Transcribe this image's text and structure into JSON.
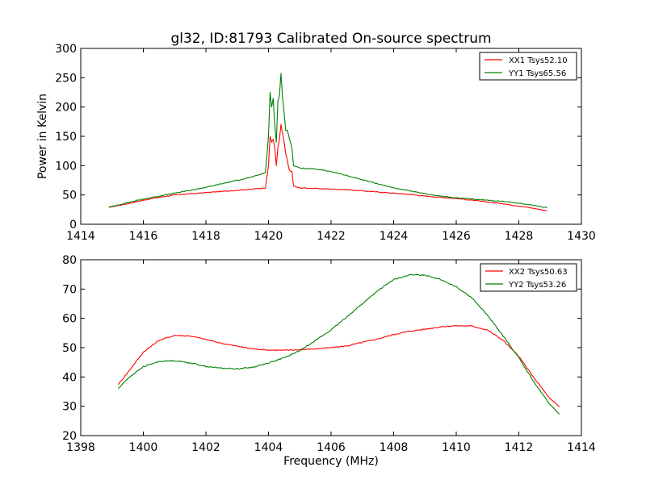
{
  "chart_data": [
    {
      "type": "line",
      "title": "gl32, ID:81793 Calibrated On-source spectrum",
      "xlabel": "",
      "ylabel": "Power in Kelvin",
      "xlim": [
        1414,
        1430
      ],
      "ylim": [
        0,
        300
      ],
      "xticks": [
        "1414",
        "1416",
        "1418",
        "1420",
        "1422",
        "1424",
        "1426",
        "1428",
        "1430"
      ],
      "yticks": [
        "0",
        "50",
        "100",
        "150",
        "200",
        "250",
        "300"
      ],
      "legend_position": "top-right",
      "grid": false,
      "series": [
        {
          "name": "XX1 Tsys52.10",
          "color": "#ff0000",
          "x": [
            1414.9,
            1415.5,
            1416.0,
            1416.5,
            1417.0,
            1417.5,
            1418.0,
            1418.5,
            1419.0,
            1419.5,
            1419.9,
            1420.0,
            1420.05,
            1420.1,
            1420.15,
            1420.2,
            1420.25,
            1420.3,
            1420.35,
            1420.4,
            1420.45,
            1420.5,
            1420.55,
            1420.6,
            1420.65,
            1420.7,
            1420.75,
            1420.8,
            1421.0,
            1421.5,
            1422.0,
            1422.5,
            1423.0,
            1423.5,
            1424.0,
            1424.5,
            1425.0,
            1425.5,
            1426.0,
            1426.5,
            1427.0,
            1427.5,
            1428.0,
            1428.5,
            1428.9
          ],
          "y": [
            29,
            35,
            41,
            46,
            50,
            52,
            54,
            56,
            58,
            60,
            62,
            100,
            150,
            140,
            145,
            130,
            100,
            130,
            145,
            170,
            155,
            140,
            120,
            110,
            95,
            90,
            90,
            65,
            62,
            61,
            60,
            59,
            57,
            55,
            53,
            51,
            48,
            46,
            44,
            41,
            38,
            35,
            31,
            27,
            23
          ]
        },
        {
          "name": "YY1 Tsys65.56",
          "color": "#008000",
          "x": [
            1414.9,
            1415.5,
            1416.0,
            1416.5,
            1417.0,
            1417.5,
            1418.0,
            1418.5,
            1419.0,
            1419.5,
            1419.9,
            1420.0,
            1420.05,
            1420.1,
            1420.15,
            1420.2,
            1420.25,
            1420.3,
            1420.35,
            1420.4,
            1420.45,
            1420.5,
            1420.55,
            1420.6,
            1420.65,
            1420.7,
            1420.75,
            1420.8,
            1421.0,
            1421.5,
            1422.0,
            1422.5,
            1423.0,
            1423.5,
            1424.0,
            1424.5,
            1425.0,
            1425.5,
            1426.0,
            1426.5,
            1427.0,
            1427.5,
            1428.0,
            1428.5,
            1428.9
          ],
          "y": [
            29,
            37,
            43,
            48,
            53,
            58,
            63,
            69,
            75,
            81,
            88,
            150,
            225,
            200,
            215,
            170,
            140,
            210,
            220,
            257,
            215,
            190,
            160,
            160,
            150,
            140,
            130,
            100,
            96,
            94,
            90,
            83,
            76,
            69,
            62,
            57,
            52,
            48,
            45,
            43,
            41,
            39,
            36,
            32,
            28
          ]
        }
      ]
    },
    {
      "type": "line",
      "title": "",
      "xlabel": "Frequency (MHz)",
      "ylabel": "",
      "xlim": [
        1398,
        1414
      ],
      "ylim": [
        20,
        80
      ],
      "xticks": [
        "1398",
        "1400",
        "1402",
        "1404",
        "1406",
        "1408",
        "1410",
        "1412",
        "1414"
      ],
      "yticks": [
        "20",
        "30",
        "40",
        "50",
        "60",
        "70",
        "80"
      ],
      "legend_position": "top-right",
      "grid": false,
      "series": [
        {
          "name": "XX2 Tsys50.63",
          "color": "#ff0000",
          "x": [
            1399.2,
            1399.5,
            1400.0,
            1400.5,
            1401.0,
            1401.5,
            1402.0,
            1402.5,
            1403.0,
            1403.5,
            1404.0,
            1404.5,
            1405.0,
            1405.5,
            1406.0,
            1406.5,
            1407.0,
            1407.5,
            1408.0,
            1408.5,
            1409.0,
            1409.5,
            1410.0,
            1410.5,
            1411.0,
            1411.5,
            1412.0,
            1412.5,
            1413.0,
            1413.3
          ],
          "y": [
            37.5,
            41.5,
            48.5,
            52.5,
            54.2,
            54.0,
            52.8,
            51.5,
            50.5,
            49.6,
            49.2,
            49.1,
            49.3,
            49.6,
            50.0,
            50.6,
            51.8,
            53.0,
            54.5,
            55.6,
            56.3,
            57.1,
            57.5,
            57.4,
            56.0,
            52.5,
            47.0,
            39.5,
            32.5,
            29.8
          ]
        },
        {
          "name": "YY2 Tsys53.26",
          "color": "#008000",
          "x": [
            1399.2,
            1399.5,
            1400.0,
            1400.5,
            1401.0,
            1401.5,
            1402.0,
            1402.5,
            1403.0,
            1403.5,
            1404.0,
            1404.5,
            1405.0,
            1405.5,
            1406.0,
            1406.5,
            1407.0,
            1407.5,
            1408.0,
            1408.5,
            1409.0,
            1409.5,
            1410.0,
            1410.5,
            1411.0,
            1411.5,
            1412.0,
            1412.5,
            1413.0,
            1413.3
          ],
          "y": [
            36.0,
            39.5,
            43.5,
            45.3,
            45.6,
            44.8,
            43.6,
            43.0,
            42.8,
            43.3,
            44.8,
            46.5,
            49.0,
            52.5,
            56.0,
            60.5,
            65.0,
            69.5,
            73.2,
            74.8,
            74.8,
            73.3,
            70.8,
            67.0,
            61.0,
            54.0,
            46.5,
            38.0,
            30.5,
            27.3
          ]
        }
      ]
    }
  ]
}
